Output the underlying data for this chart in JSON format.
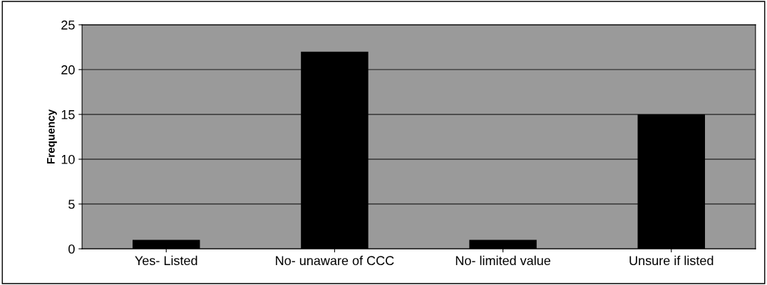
{
  "chart_data": {
    "type": "bar",
    "ylabel": "Frequency",
    "categories": [
      "Yes- Listed",
      "No- unaware of CCC",
      "No- limited value",
      "Unsure if listed"
    ],
    "values": [
      1,
      22,
      1,
      15
    ],
    "color": "#000000",
    "ylim": [
      0,
      25
    ],
    "yticks": [
      0,
      5,
      10,
      15,
      20,
      25
    ],
    "grid": "y"
  }
}
